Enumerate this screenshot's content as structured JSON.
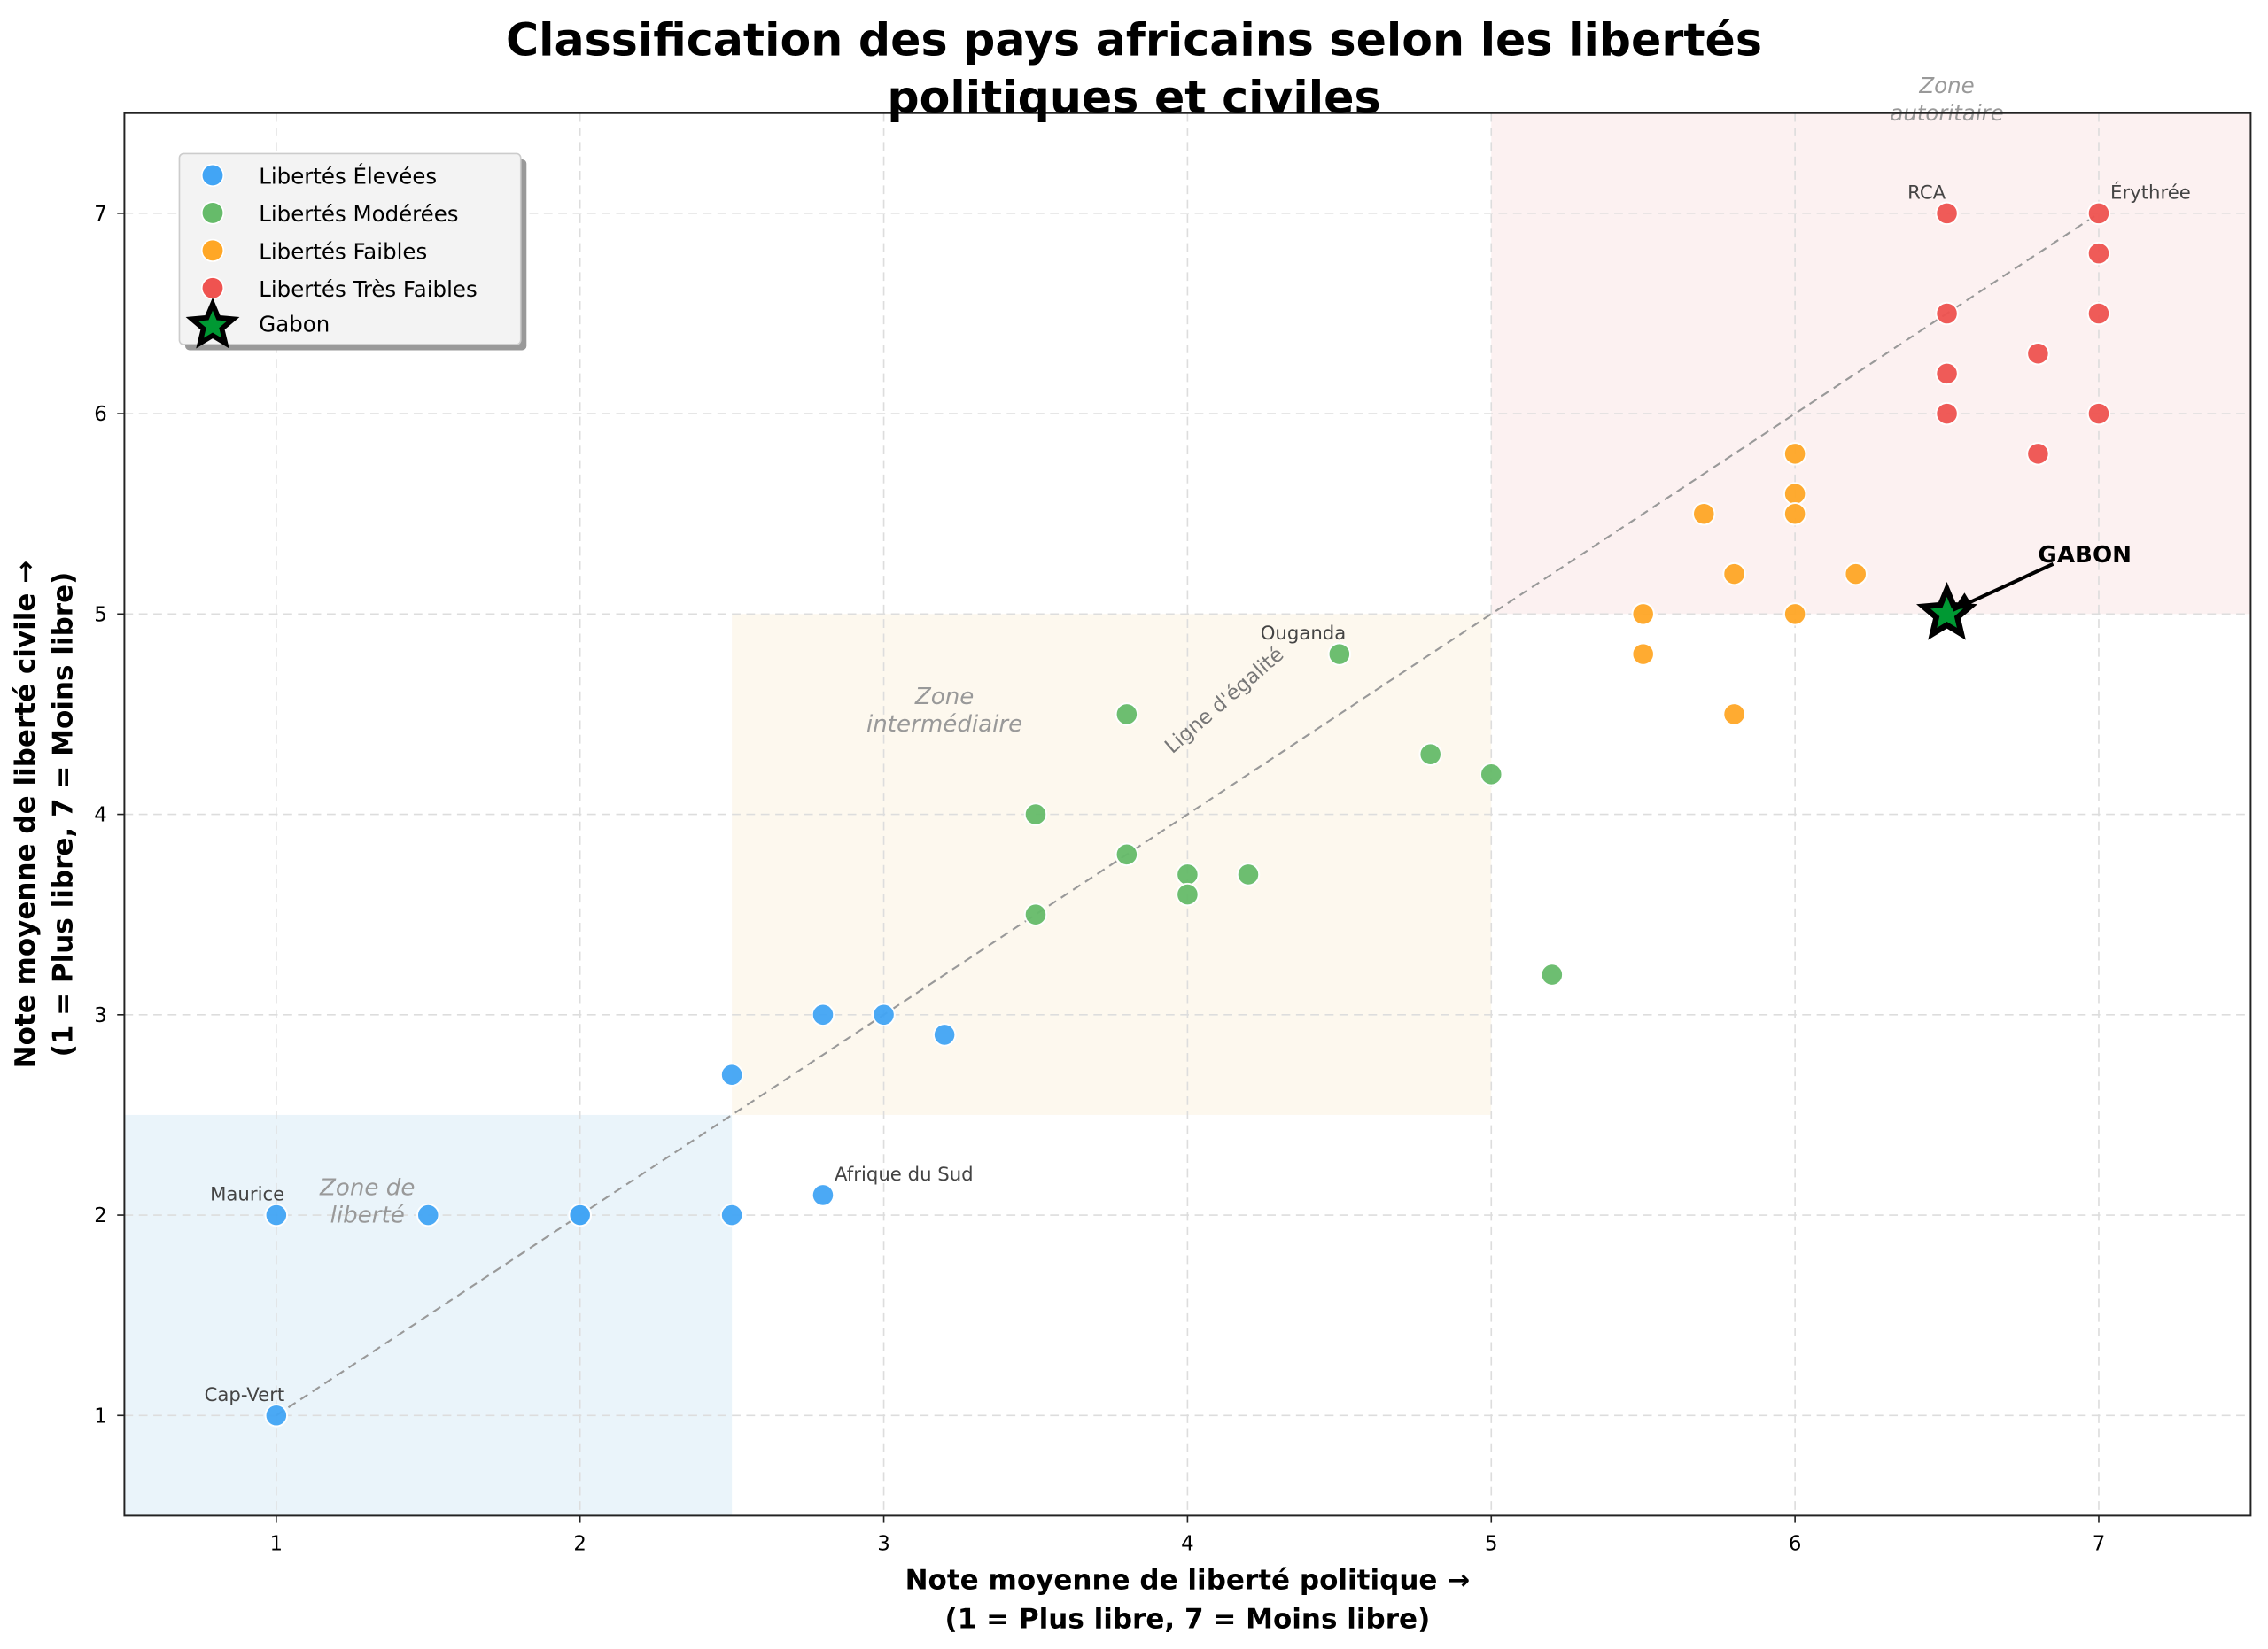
{
  "chart_data": {
    "type": "scatter",
    "title": "Classification des pays africains selon les libertés\npolitiques et civiles",
    "xlabel": "Note moyenne de liberté politique →\n(1 = Plus libre, 7 = Moins libre)",
    "ylabel": "Note moyenne de liberté civile →\n(1 = Plus libre, 7 = Moins libre)",
    "xlim": [
      0.5,
      7.5
    ],
    "ylim": [
      0.5,
      7.5
    ],
    "xticks": [
      1,
      2,
      3,
      4,
      5,
      6,
      7
    ],
    "yticks": [
      1,
      2,
      3,
      4,
      5,
      6,
      7
    ],
    "grid": true,
    "legend_position": "top-left",
    "series": [
      {
        "name": "Libertés Élevées",
        "color": "#42A5F5",
        "points": [
          [
            1,
            1
          ],
          [
            1,
            2
          ],
          [
            1.5,
            2
          ],
          [
            2,
            2
          ],
          [
            2,
            2
          ],
          [
            2.5,
            2
          ],
          [
            2.8,
            2.1
          ],
          [
            2.5,
            2.7
          ],
          [
            2.8,
            3
          ],
          [
            3,
            3
          ],
          [
            3.2,
            2.9
          ]
        ]
      },
      {
        "name": "Libertés Modérées",
        "color": "#66BB6A",
        "points": [
          [
            3.5,
            4
          ],
          [
            3.5,
            3.5
          ],
          [
            3.8,
            3.8
          ],
          [
            3.8,
            4.5
          ],
          [
            4,
            3.7
          ],
          [
            4,
            3.6
          ],
          [
            4.2,
            3.7
          ],
          [
            4.5,
            4.8
          ],
          [
            4.8,
            4.3
          ],
          [
            5,
            4.2
          ],
          [
            5.2,
            3.2
          ]
        ]
      },
      {
        "name": "Libertés Faibles",
        "color": "#FFA726",
        "points": [
          [
            5.5,
            5
          ],
          [
            5.5,
            4.8
          ],
          [
            5.7,
            5.5
          ],
          [
            5.8,
            5.2
          ],
          [
            5.8,
            4.5
          ],
          [
            6,
            5.8
          ],
          [
            6,
            5.6
          ],
          [
            6,
            5.5
          ],
          [
            6,
            5
          ],
          [
            6.2,
            5.2
          ]
        ]
      },
      {
        "name": "Libertés Très Faibles",
        "color": "#EF5350",
        "points": [
          [
            6.5,
            7
          ],
          [
            6.5,
            6.5
          ],
          [
            6.5,
            6.2
          ],
          [
            6.5,
            6
          ],
          [
            6.8,
            6.3
          ],
          [
            6.8,
            5.8
          ],
          [
            7,
            7
          ],
          [
            7,
            6.8
          ],
          [
            7,
            6.5
          ],
          [
            7,
            6
          ]
        ]
      }
    ],
    "highlight": {
      "name": "Gabon",
      "point": [
        6.5,
        5
      ],
      "color": "#009933",
      "annotation": "GABON"
    },
    "zones": [
      {
        "label": "Zone de\nliberté",
        "x": [
          0.5,
          2.5
        ],
        "y": [
          0.5,
          2.5
        ],
        "color": "#EAF4FA"
      },
      {
        "label": "Zone\nintermédiaire",
        "x": [
          2.5,
          5
        ],
        "y": [
          2.5,
          5
        ],
        "color": "#FDF8EE"
      },
      {
        "label": "Zone\nautoritaire",
        "x": [
          5,
          7.5
        ],
        "y": [
          5,
          7.5
        ],
        "color": "#FCF1F1"
      }
    ],
    "equality_line": {
      "label": "Ligne d'égalité",
      "from": [
        1,
        1
      ],
      "to": [
        7,
        7
      ]
    },
    "point_labels": [
      {
        "text": "Maurice",
        "point": [
          1,
          2
        ]
      },
      {
        "text": "Cap-Vert",
        "point": [
          1,
          1
        ]
      },
      {
        "text": "Afrique du Sud",
        "point": [
          2.8,
          2.1
        ]
      },
      {
        "text": "Ouganda",
        "point": [
          4.5,
          4.8
        ]
      },
      {
        "text": "RCA",
        "point": [
          6.5,
          7
        ]
      },
      {
        "text": "Érythrée",
        "point": [
          7,
          7
        ]
      }
    ]
  }
}
